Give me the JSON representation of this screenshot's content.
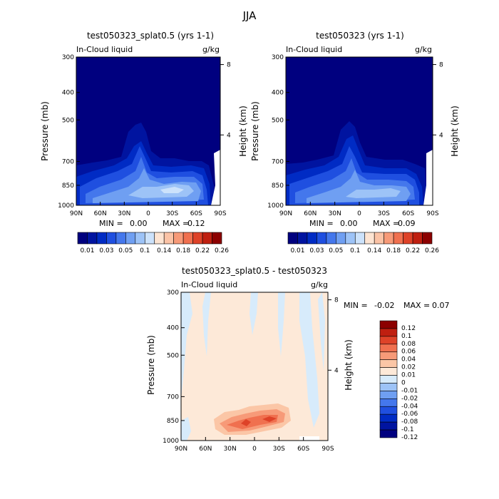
{
  "suptitle": "JJA",
  "colors": {
    "blue_scale": [
      "#00007f",
      "#0014a0",
      "#002bc4",
      "#1f4fe0",
      "#4477ec",
      "#6f9ff2",
      "#9dc3f7",
      "#cce2fb",
      "#fde4d2",
      "#fbc3a6",
      "#f79a78",
      "#f0704f",
      "#de4228",
      "#bf1f10",
      "#8c0000"
    ],
    "diff_scale": [
      "#00007f",
      "#0014a0",
      "#002bc4",
      "#1f4fe0",
      "#4477ec",
      "#6f9ff2",
      "#9dc3f7",
      "#d7ebfb",
      "#fde9d8",
      "#fbc6a6",
      "#f79a78",
      "#f0704f",
      "#de4228",
      "#bf1f10",
      "#8c0000"
    ]
  },
  "chart_data": [
    {
      "type": "heatmap",
      "title": "test050323_splat0.5 (yrs 1-1)",
      "field": "In-Cloud liquid",
      "units": "g/kg",
      "ylabel": "Pressure (mb)",
      "ylabel2": "Height (km)",
      "x_ticks": [
        "90N",
        "60N",
        "30N",
        "0",
        "30S",
        "60S",
        "90S"
      ],
      "y_ticks": [
        "300",
        "400",
        "500",
        "700",
        "850",
        "1000"
      ],
      "y2_ticks": [
        "8",
        "4"
      ],
      "stats_min_label": "MIN =",
      "stats_min": "0.00",
      "stats_max_label": "MAX =",
      "stats_max": "0.12",
      "colorbar_labels": [
        "0.01",
        "0.03",
        "0.05",
        "0.1",
        "0.14",
        "0.18",
        "0.22",
        "0.26"
      ],
      "levels": [
        0.01,
        0.02,
        0.03,
        0.04,
        0.05,
        0.07,
        0.1,
        0.12,
        0.14,
        0.16,
        0.18,
        0.2,
        0.22,
        0.24,
        0.26
      ]
    },
    {
      "type": "heatmap",
      "title": "test050323 (yrs 1-1)",
      "field": "In-Cloud liquid",
      "units": "g/kg",
      "ylabel": "Pressure (mb)",
      "ylabel2": "Height (km)",
      "x_ticks": [
        "90N",
        "60N",
        "30N",
        "0",
        "30S",
        "60S",
        "90S"
      ],
      "y_ticks": [
        "300",
        "400",
        "500",
        "700",
        "850",
        "1000"
      ],
      "y2_ticks": [
        "8",
        "4"
      ],
      "stats_min_label": "MIN =",
      "stats_min": "0.00",
      "stats_max_label": "MAX =",
      "stats_max": "0.09",
      "colorbar_labels": [
        "0.01",
        "0.03",
        "0.05",
        "0.1",
        "0.14",
        "0.18",
        "0.22",
        "0.26"
      ],
      "levels": [
        0.01,
        0.02,
        0.03,
        0.04,
        0.05,
        0.07,
        0.1,
        0.12,
        0.14,
        0.16,
        0.18,
        0.2,
        0.22,
        0.24,
        0.26
      ]
    },
    {
      "type": "heatmap",
      "title": "test050323_splat0.5 - test050323",
      "field": "In-Cloud liquid",
      "units": "g/kg",
      "ylabel": "Pressure (mb)",
      "ylabel2": "Height (km)",
      "x_ticks": [
        "90N",
        "60N",
        "30N",
        "0",
        "30S",
        "60S",
        "90S"
      ],
      "y_ticks": [
        "300",
        "400",
        "500",
        "700",
        "850",
        "1000"
      ],
      "y2_ticks": [
        "8",
        "4"
      ],
      "stats_min_label": "MIN =",
      "stats_min": "-0.02",
      "stats_max_label": "MAX =",
      "stats_max": "0.07",
      "colorbar_labels": [
        "0.12",
        "0.1",
        "0.08",
        "0.06",
        "0.04",
        "0.02",
        "0.01",
        "0",
        "-0.01",
        "-0.02",
        "-0.04",
        "-0.06",
        "-0.08",
        "-0.1",
        "-0.12"
      ],
      "levels": [
        -0.12,
        -0.1,
        -0.08,
        -0.06,
        -0.04,
        -0.02,
        -0.01,
        0,
        0.01,
        0.02,
        0.04,
        0.06,
        0.08,
        0.1,
        0.12
      ]
    }
  ]
}
